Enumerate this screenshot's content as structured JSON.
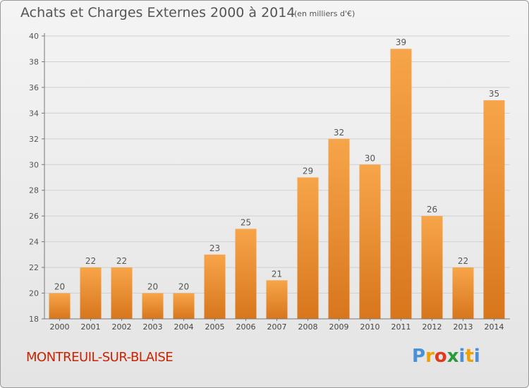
{
  "header": {
    "title": "Achats et Charges Externes 2000 à 2014",
    "subtitle": "(en milliers d'€)"
  },
  "footer": {
    "city": "MONTREUIL-SUR-BLAISE",
    "city_color": "#cc2200",
    "logo_letters": [
      "P",
      "r",
      "o",
      "x",
      "i",
      "t",
      "i"
    ],
    "logo_colors": [
      "#4a90d9",
      "#f0a000",
      "#e03a1e",
      "#2a9a3a",
      "#4a90d9",
      "#f0a000",
      "#4a90d9"
    ]
  },
  "colors": {
    "bar_light": "#f7a54a",
    "bar_dark": "#d8761c",
    "grid": "#d0d0d0",
    "text": "#555555"
  },
  "chart_data": {
    "type": "bar",
    "title": "Achats et Charges Externes 2000 à 2014",
    "subtitle": "(en milliers d'€)",
    "categories": [
      "2000",
      "2001",
      "2002",
      "2003",
      "2004",
      "2005",
      "2006",
      "2007",
      "2008",
      "2009",
      "2010",
      "2011",
      "2012",
      "2013",
      "2014"
    ],
    "values": [
      20,
      22,
      22,
      20,
      20,
      23,
      25,
      21,
      29,
      32,
      30,
      39,
      26,
      22,
      35
    ],
    "ylim": [
      18,
      40
    ],
    "yticks": [
      18,
      20,
      22,
      24,
      26,
      28,
      30,
      32,
      34,
      36,
      38,
      40
    ],
    "grid": true,
    "data_labels": true
  }
}
